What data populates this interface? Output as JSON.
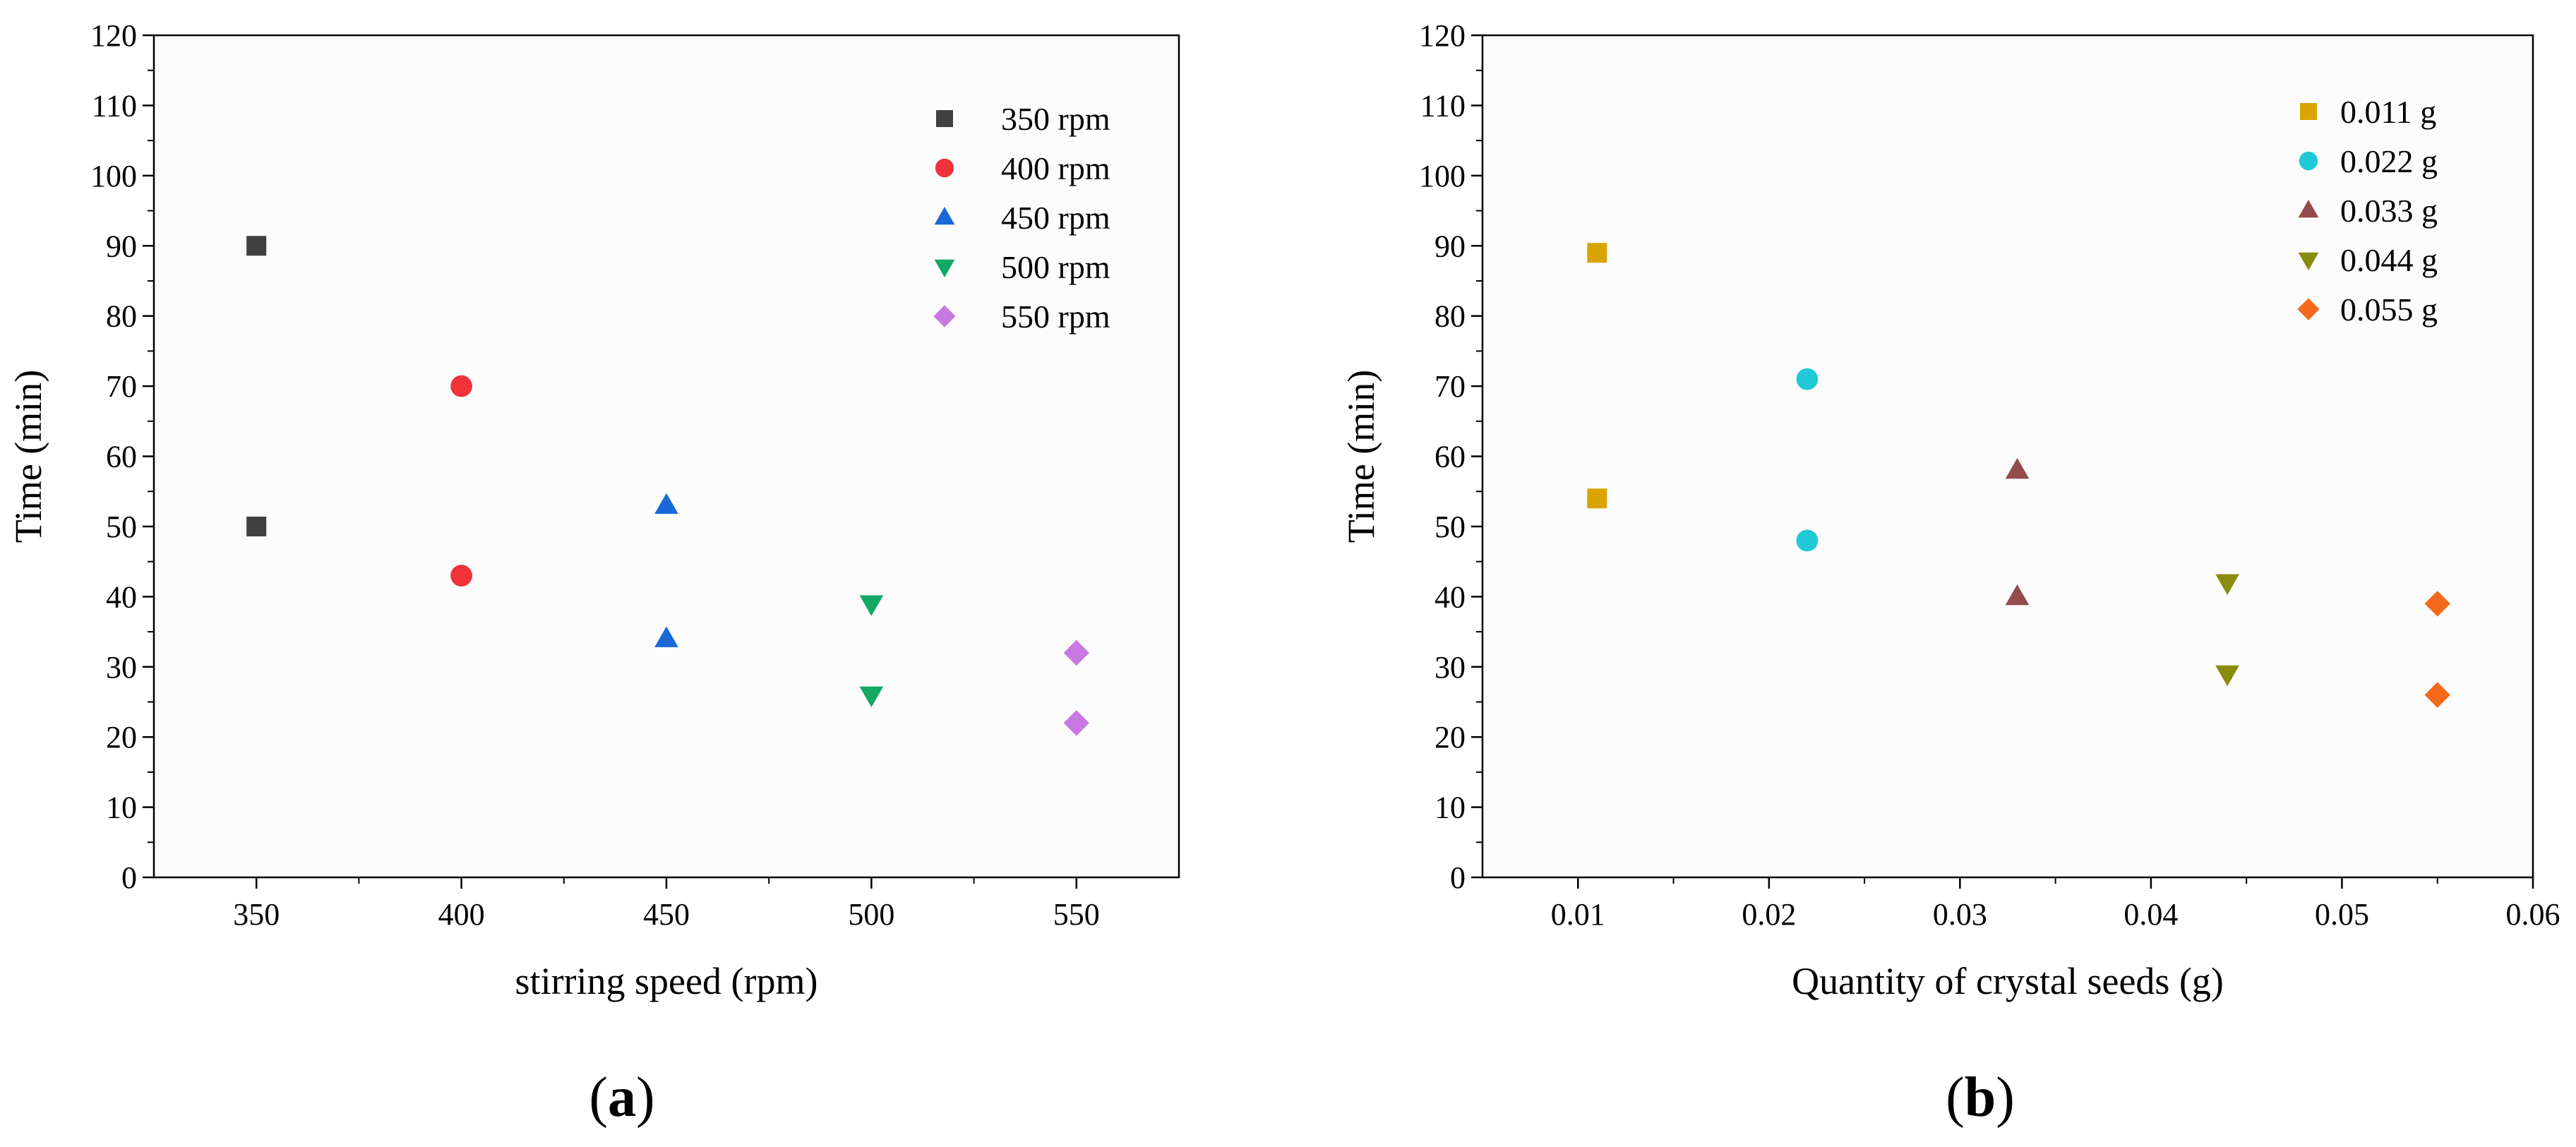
{
  "chart_data": [
    {
      "panel": "a",
      "type": "scatter",
      "xlabel": "stirring speed (rpm)",
      "ylabel": "Time (min)",
      "xlim": [
        325,
        575
      ],
      "ylim": [
        0,
        120
      ],
      "xticks": [
        350,
        400,
        450,
        500,
        550
      ],
      "yticks": [
        0,
        10,
        20,
        30,
        40,
        50,
        60,
        70,
        80,
        90,
        100,
        110,
        120
      ],
      "grid": false,
      "legend_position": "top-right",
      "series": [
        {
          "name": "350 rpm",
          "marker": "square",
          "color": "#404040",
          "points": [
            [
              350,
              90
            ],
            [
              350,
              50
            ]
          ]
        },
        {
          "name": "400 rpm",
          "marker": "circle",
          "color": "#f0333a",
          "points": [
            [
              400,
              70
            ],
            [
              400,
              43
            ]
          ]
        },
        {
          "name": "450 rpm",
          "marker": "triangle-up",
          "color": "#1868d8",
          "points": [
            [
              450,
              53
            ],
            [
              450,
              34
            ]
          ]
        },
        {
          "name": "500 rpm",
          "marker": "triangle-down",
          "color": "#13a864",
          "points": [
            [
              500,
              39
            ],
            [
              500,
              26
            ]
          ]
        },
        {
          "name": "550 rpm",
          "marker": "diamond",
          "color": "#c879e0",
          "points": [
            [
              550,
              32
            ],
            [
              550,
              22
            ]
          ]
        }
      ]
    },
    {
      "panel": "b",
      "type": "scatter",
      "xlabel": "Quantity of crystal seeds (g)",
      "ylabel": "Time (min)",
      "xlim": [
        0.005,
        0.06
      ],
      "ylim": [
        0,
        120
      ],
      "xticks": [
        0.01,
        0.02,
        0.03,
        0.04,
        0.05,
        0.06
      ],
      "yticks": [
        0,
        10,
        20,
        30,
        40,
        50,
        60,
        70,
        80,
        90,
        100,
        110,
        120
      ],
      "grid": false,
      "legend_position": "top-right",
      "series": [
        {
          "name": "0.011 g",
          "marker": "square",
          "color": "#d9a400",
          "points": [
            [
              0.011,
              89
            ],
            [
              0.011,
              54
            ]
          ]
        },
        {
          "name": "0.022 g",
          "marker": "circle",
          "color": "#21c8d6",
          "points": [
            [
              0.022,
              71
            ],
            [
              0.022,
              48
            ]
          ]
        },
        {
          "name": "0.033 g",
          "marker": "triangle-up",
          "color": "#934b4b",
          "points": [
            [
              0.033,
              58
            ],
            [
              0.033,
              40
            ]
          ]
        },
        {
          "name": "0.044 g",
          "marker": "triangle-down",
          "color": "#8a8c0c",
          "points": [
            [
              0.044,
              42
            ],
            [
              0.044,
              29
            ]
          ]
        },
        {
          "name": "0.055 g",
          "marker": "diamond",
          "color": "#f56a1a",
          "points": [
            [
              0.055,
              39
            ],
            [
              0.055,
              26
            ]
          ]
        }
      ]
    }
  ],
  "captions": {
    "a": {
      "open": "(",
      "letter": "a",
      "close": ")"
    },
    "b": {
      "open": "(",
      "letter": "b",
      "close": ")"
    }
  }
}
